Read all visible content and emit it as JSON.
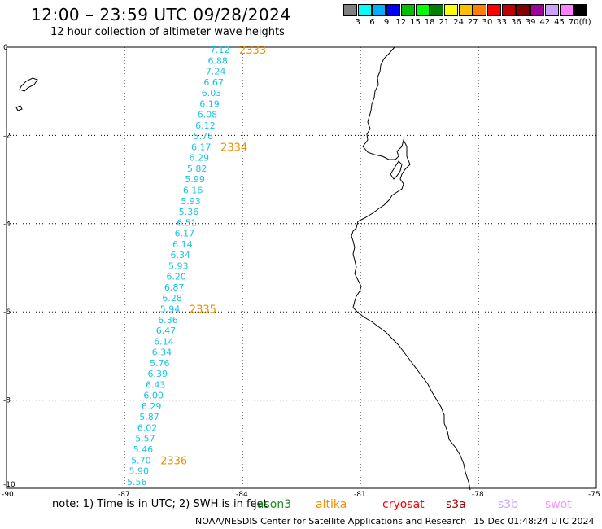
{
  "header": {
    "title": "12:00 – 23:59 UTC 09/28/2024",
    "subtitle": "12 hour collection of altimeter wave heights"
  },
  "legend": {
    "unit": "(ft)",
    "colors": [
      "#808080",
      "#00ffff",
      "#00b0ff",
      "#0000ff",
      "#00c000",
      "#00ff00",
      "#008000",
      "#ffff00",
      "#ffc000",
      "#ff8000",
      "#ff0000",
      "#c00000",
      "#800000",
      "#a000a0",
      "#d0a0ff",
      "#ff80ff",
      "#000000"
    ],
    "labels": [
      "3",
      "6",
      "9",
      "12",
      "15",
      "18",
      "21",
      "24",
      "27",
      "30",
      "33",
      "36",
      "39",
      "42",
      "45",
      "70"
    ]
  },
  "map": {
    "lat_ticks": [
      "0",
      "-2",
      "-4",
      "-6",
      "-8",
      "-10"
    ],
    "lon_ticks": [
      "-90",
      "-87",
      "-84",
      "-81",
      "-78",
      "-75"
    ],
    "swh_values": [
      "7.12",
      "6.88",
      "7.24",
      "6.67",
      "6.03",
      "6.19",
      "6.08",
      "6.12",
      "5.78",
      "6.17",
      "6.29",
      "5.82",
      "5.99",
      "6.16",
      "5.93",
      "5.36",
      "6.51",
      "6.17",
      "6.14",
      "6.34",
      "5.93",
      "6.20",
      "6.87",
      "6.28",
      "5.94",
      "6.36",
      "6.47",
      "6.14",
      "6.34",
      "5.76",
      "6.39",
      "6.43",
      "6.00",
      "6.29",
      "5.87",
      "6.02",
      "5.57",
      "5.46",
      "5.70",
      "5.90",
      "5.56"
    ],
    "pass_labels": [
      {
        "label": "2333",
        "row": 0
      },
      {
        "label": "2334",
        "row": 9
      },
      {
        "label": "2335",
        "row": 24
      },
      {
        "label": "2336",
        "row": 38
      }
    ]
  },
  "footer": {
    "note": "note:  1) Time is in UTC; 2) SWH is in feet",
    "satellites": [
      {
        "name": "jason3",
        "color": "#1f8a1f"
      },
      {
        "name": "altika",
        "color": "#f09000"
      },
      {
        "name": "cryosat",
        "color": "#ff0000"
      },
      {
        "name": "s3a",
        "color": "#990000"
      },
      {
        "name": "s3b",
        "color": "#c8a8f0"
      },
      {
        "name": "swot",
        "color": "#ff90ff"
      }
    ],
    "credit": "NOAA/NESDIS Center for Satellite Applications and Research",
    "timestamp": "15 Dec 01:48:24 UTC 2024"
  }
}
